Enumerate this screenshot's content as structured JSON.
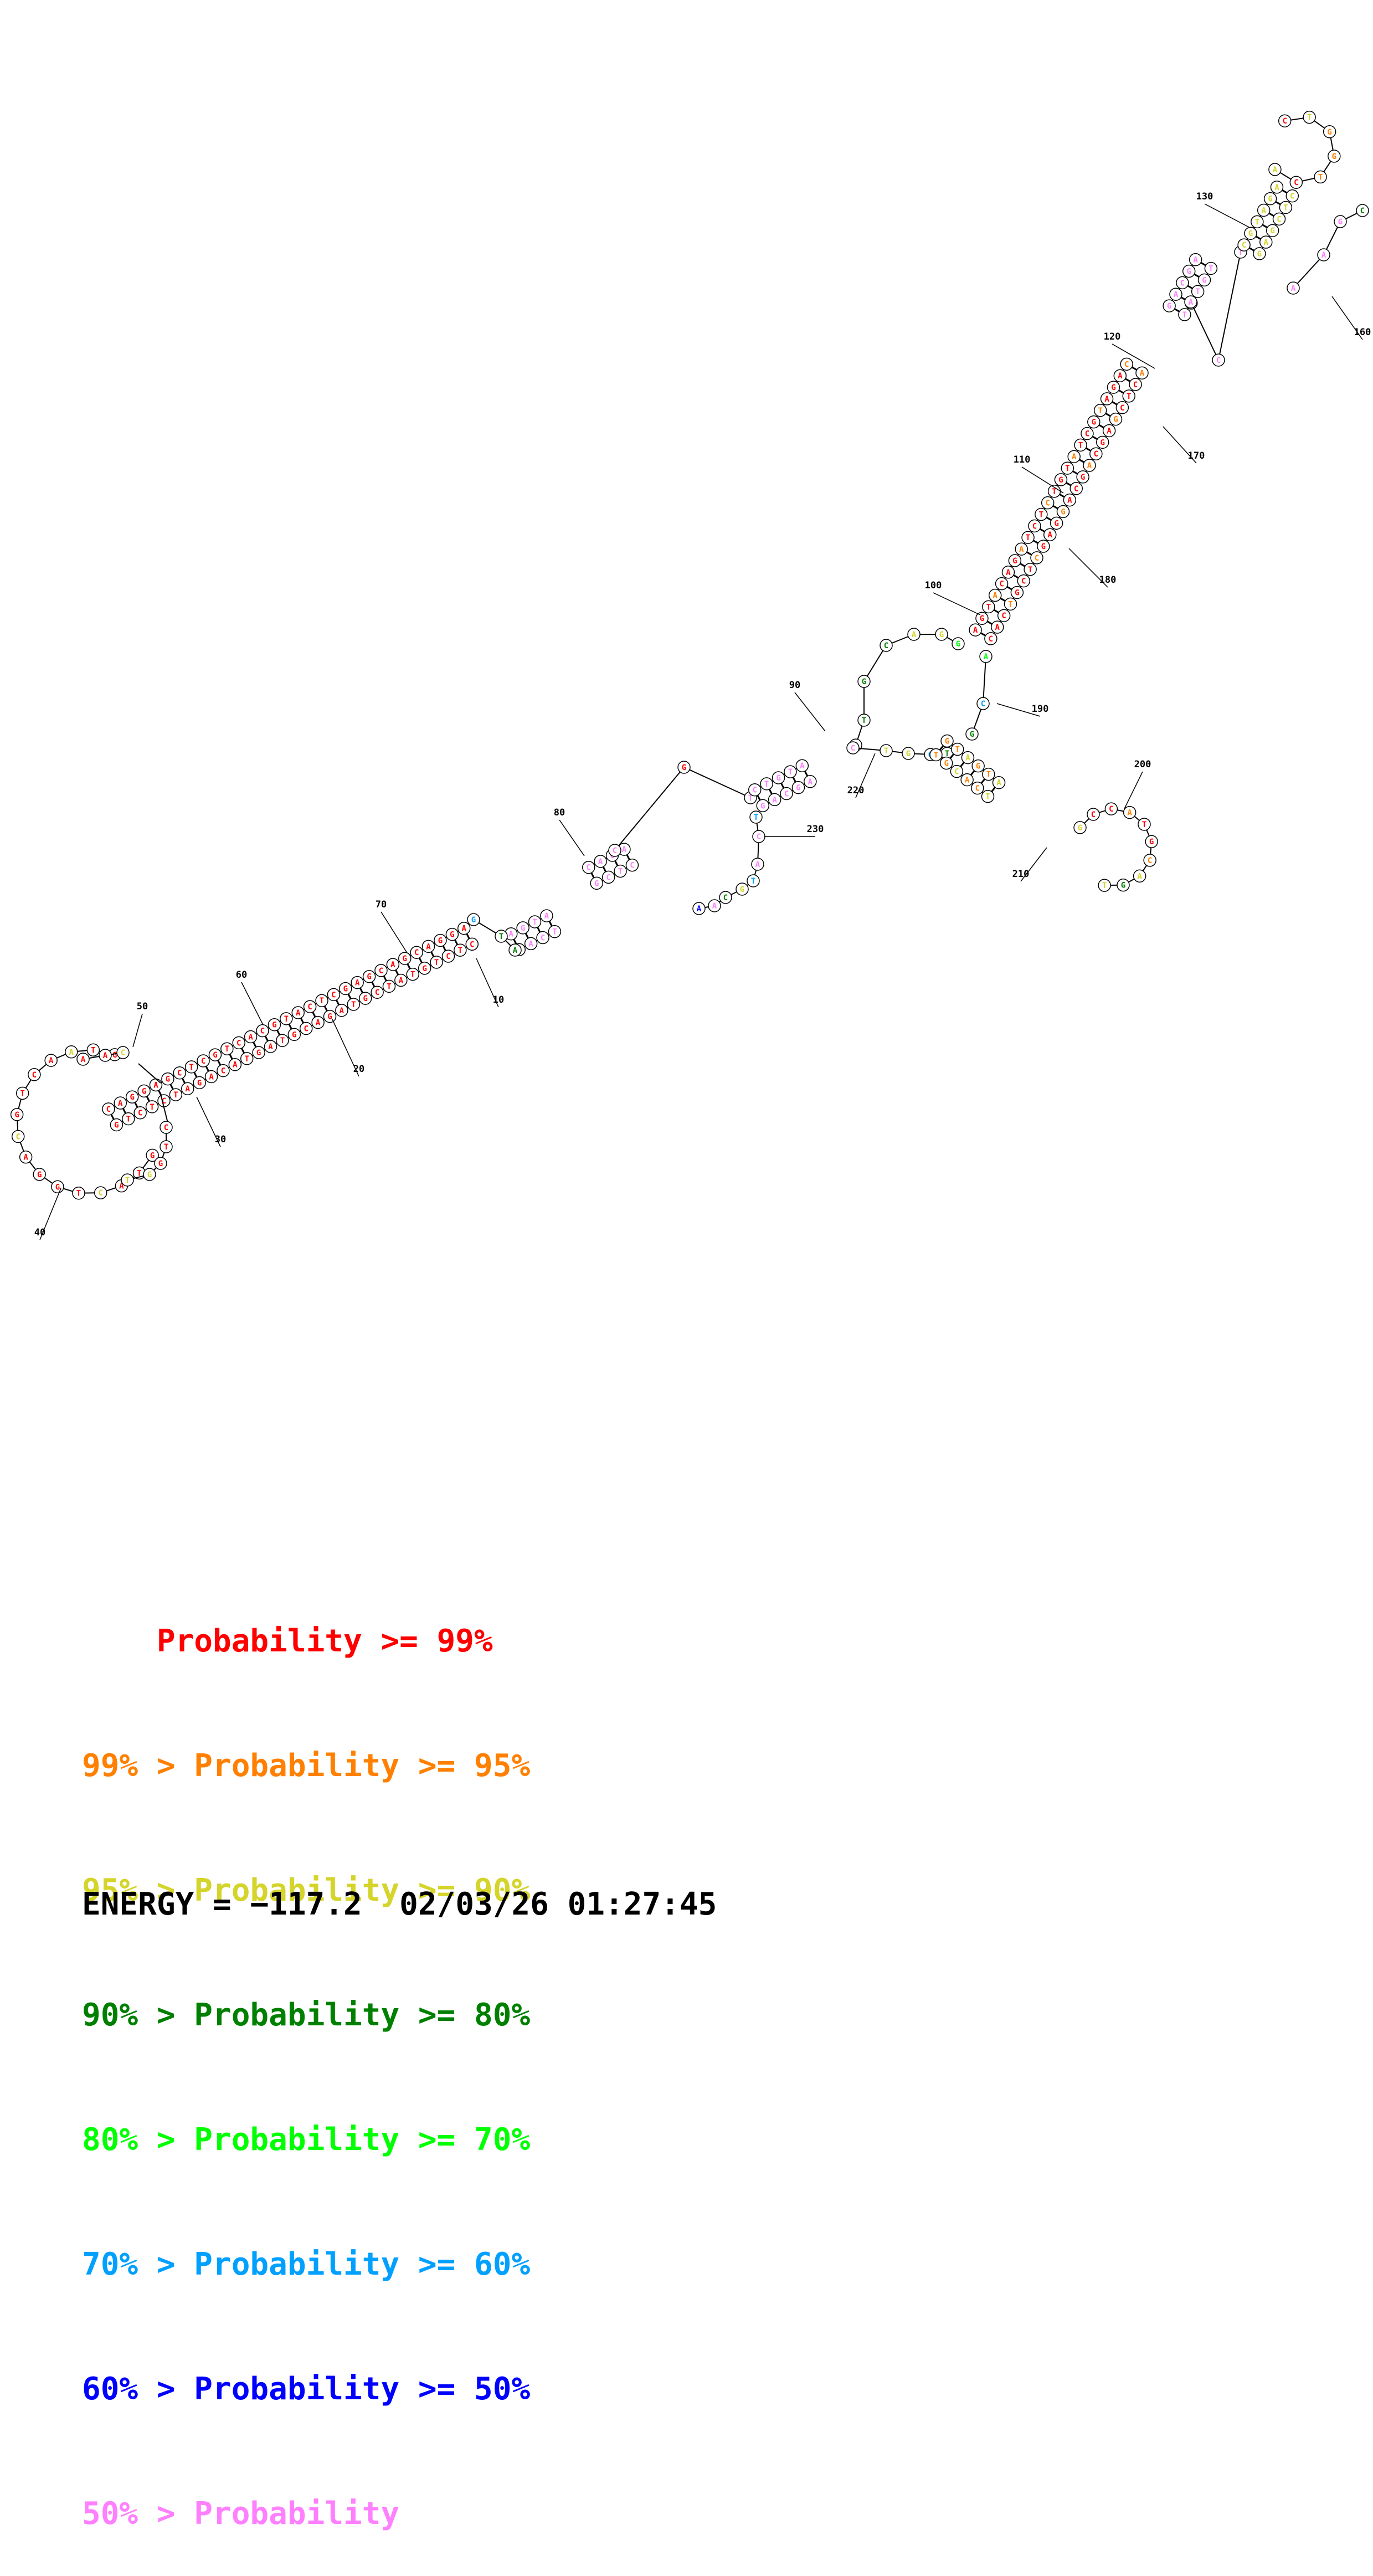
{
  "structure": {
    "tick_labels": [
      "10",
      "20",
      "30",
      "40",
      "50",
      "60",
      "70",
      "80",
      "90",
      "100",
      "110",
      "120",
      "130",
      "160",
      "170",
      "180",
      "190",
      "200",
      "210",
      "220",
      "230"
    ]
  },
  "legend": {
    "colors": {
      "p99": "#ff0000",
      "p95": "#ff8000",
      "p90": "#d4d42a",
      "p80": "#008000",
      "p70": "#00ff00",
      "p60": "#00a0ff",
      "p50": "#0000ff",
      "plow": "#ff80ff"
    },
    "lines": [
      {
        "prefix": "    ",
        "text": "Probability >= 99%",
        "color": "#ff0000"
      },
      {
        "prefix": "",
        "text": "99% > Probability >= 95%",
        "color": "#ff8000"
      },
      {
        "prefix": "",
        "text": "95% > Probability >= 90%",
        "color": "#d4d42a"
      },
      {
        "prefix": "",
        "text": "90% > Probability >= 80%",
        "color": "#008000"
      },
      {
        "prefix": "",
        "text": "80% > Probability >= 70%",
        "color": "#00ff00"
      },
      {
        "prefix": "",
        "text": "70% > Probability >= 60%",
        "color": "#00a0ff"
      },
      {
        "prefix": "",
        "text": "60% > Probability >= 50%",
        "color": "#0000ff"
      },
      {
        "prefix": "",
        "text": "50% > Probability",
        "color": "#ff80ff"
      }
    ]
  },
  "footer": {
    "energy_label": "ENERGY = ",
    "energy_value": "−117.2",
    "timestamp": "02/03/26 01:27:45"
  }
}
